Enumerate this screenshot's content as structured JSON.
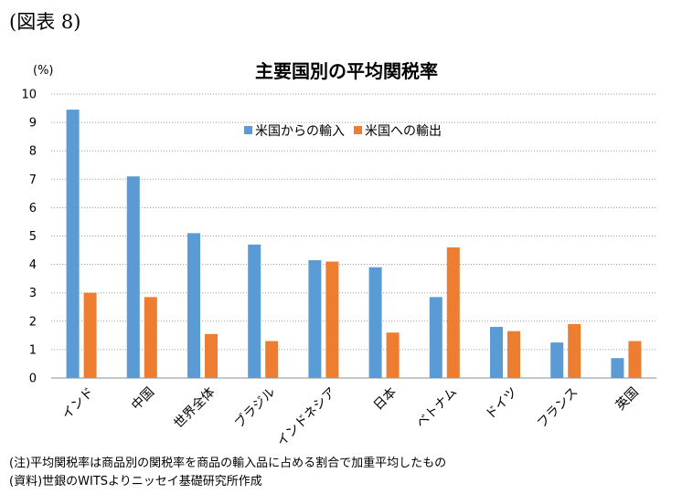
{
  "figure_label": "(図表 8)",
  "notes": [
    "(注)平均関税率は商品別の関税率を商品の輸入品に占める割合で加重平均したもの",
    "(資料)世銀のWITSよりニッセイ基礎研究所作成"
  ],
  "chart_data": {
    "type": "bar",
    "title": "主要国別の平均関税率",
    "ylabel": "(%)",
    "xlabel": "",
    "ylim": [
      0,
      10
    ],
    "yticks": [
      0,
      1,
      2,
      3,
      4,
      5,
      6,
      7,
      8,
      9,
      10
    ],
    "grid": "horizontal-dotted",
    "legend_position": "top-center",
    "categories": [
      "インド",
      "中国",
      "世界全体",
      "ブラジル",
      "インドネシア",
      "日本",
      "ベトナム",
      "ドイツ",
      "フランス",
      "英国"
    ],
    "series": [
      {
        "name": "米国からの輸入",
        "color": "#5B9BD5",
        "values": [
          9.45,
          7.1,
          5.1,
          4.7,
          4.15,
          3.9,
          2.85,
          1.8,
          1.25,
          0.7
        ]
      },
      {
        "name": "米国への輸出",
        "color": "#ED7D31",
        "values": [
          3.0,
          2.85,
          1.55,
          1.3,
          4.1,
          1.6,
          4.6,
          1.65,
          1.9,
          1.3
        ]
      }
    ]
  }
}
